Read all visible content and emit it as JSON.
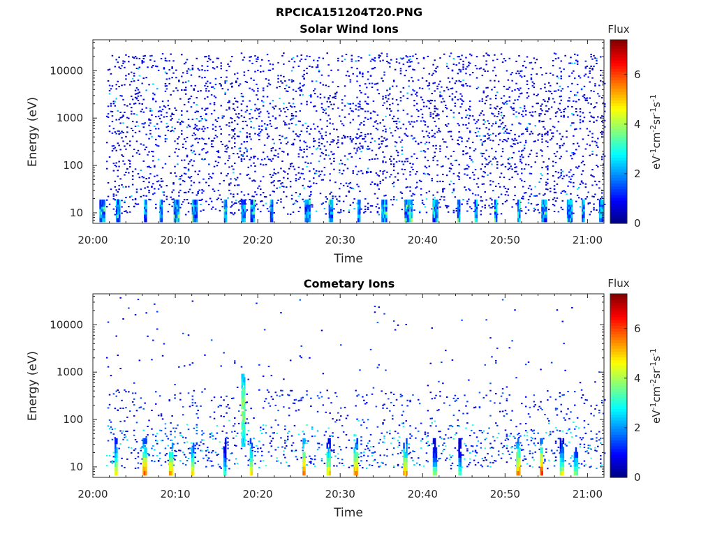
{
  "figure": {
    "title": "RPCICA151204T20.PNG"
  },
  "chart_data": [
    {
      "type": "heatmap",
      "title": "Solar Wind Ions",
      "xlabel": "Time",
      "ylabel": "Energy (eV)",
      "x_ticks": [
        "20:00",
        "20:10",
        "20:20",
        "20:30",
        "20:40",
        "20:50",
        "21:00"
      ],
      "xlim_minutes": [
        0,
        62
      ],
      "y_ticks": [
        "10",
        "100",
        "1000",
        "10000"
      ],
      "ylim": [
        6,
        45000
      ],
      "y_scale": "log",
      "colorbar": {
        "title": "Flux",
        "label": "eV-1cm-2sr-1s-1",
        "ticks": [
          "0",
          "2",
          "4",
          "6"
        ],
        "range": [
          0,
          7.4
        ],
        "colormap": "jet"
      },
      "dominant_flux_range": [
        0.4,
        1.2
      ],
      "low_energy_burst_minutes": [
        0.8,
        2.8,
        6.2,
        8.1,
        9.8,
        12.0,
        15.9,
        18.0,
        19.1,
        21.5,
        25.7,
        28.6,
        32.1,
        35.0,
        37.8,
        38.4,
        41.2,
        44.2,
        46.3,
        48.7,
        51.5,
        54.4,
        57.5,
        59.3,
        61.4
      ]
    },
    {
      "type": "heatmap",
      "title": "Cometary Ions",
      "xlabel": "Time",
      "ylabel": "Energy (eV)",
      "x_ticks": [
        "20:00",
        "20:10",
        "20:20",
        "20:30",
        "20:40",
        "20:50",
        "21:00"
      ],
      "xlim_minutes": [
        0,
        62
      ],
      "y_ticks": [
        "10",
        "100",
        "1000",
        "10000"
      ],
      "ylim": [
        6,
        45000
      ],
      "y_scale": "log",
      "colorbar": {
        "title": "Flux",
        "label": "eV-1cm-2sr-1s-1",
        "ticks": [
          "0",
          "2",
          "4",
          "6"
        ],
        "range": [
          0,
          7.4
        ],
        "colormap": "jet"
      },
      "bursts": [
        {
          "t": 2.8,
          "peak": 5.0
        },
        {
          "t": 6.2,
          "peak": 6.0
        },
        {
          "t": 9.4,
          "peak": 5.6
        },
        {
          "t": 12.1,
          "peak": 5.2
        },
        {
          "t": 16.0,
          "peak": 3.8
        },
        {
          "t": 19.2,
          "peak": 5.4
        },
        {
          "t": 25.6,
          "peak": 6.2
        },
        {
          "t": 28.5,
          "peak": 5.2
        },
        {
          "t": 31.8,
          "peak": 6.0
        },
        {
          "t": 37.8,
          "peak": 5.6
        },
        {
          "t": 41.4,
          "peak": 4.0
        },
        {
          "t": 44.5,
          "peak": 3.8
        },
        {
          "t": 51.5,
          "peak": 6.0
        },
        {
          "t": 54.4,
          "peak": 6.4
        },
        {
          "t": 56.8,
          "peak": 4.8
        },
        {
          "t": 58.5,
          "peak": 4.2
        }
      ],
      "high_energy_feature": {
        "t": 18.0,
        "energy_range": [
          30,
          900
        ],
        "peak": 4.5
      }
    }
  ]
}
